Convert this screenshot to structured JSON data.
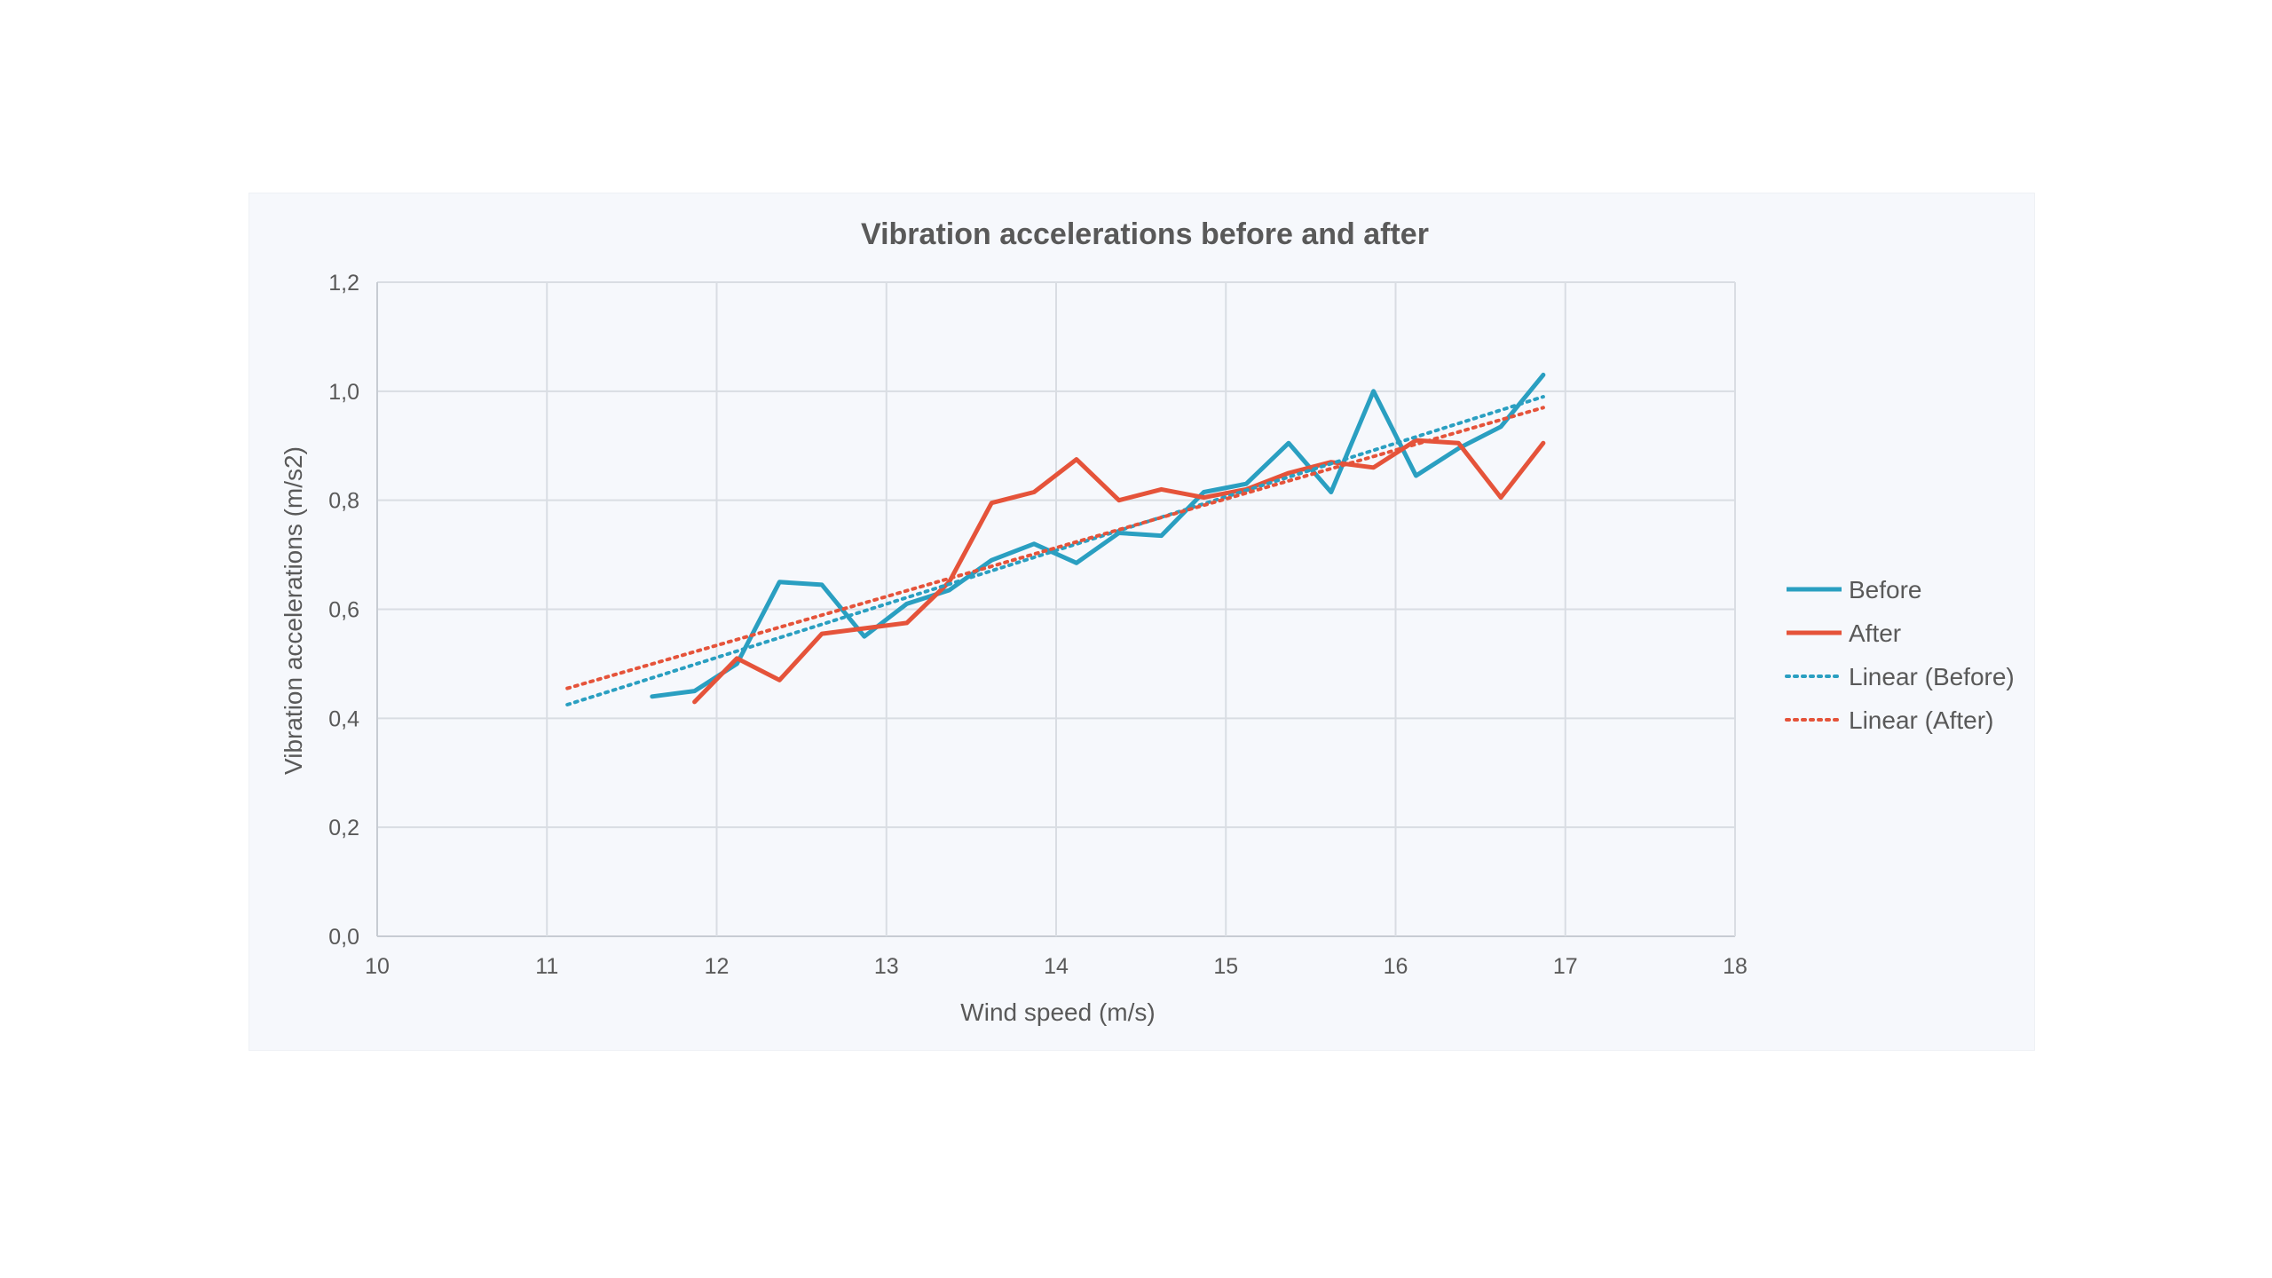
{
  "chart_data": {
    "type": "line",
    "title": "Vibration accelerations before and after",
    "xlabel": "Wind speed (m/s)",
    "ylabel": "Vibration accelerations (m/s2)",
    "xlim": [
      10,
      18
    ],
    "ylim": [
      0,
      1.2
    ],
    "x_ticks": [
      10,
      11,
      12,
      13,
      14,
      15,
      16,
      17,
      18
    ],
    "y_ticks": [
      0,
      0.2,
      0.4,
      0.6,
      0.8,
      1.0,
      1.2
    ],
    "y_tick_labels": [
      "0,0",
      "0,2",
      "0,4",
      "0,6",
      "0,8",
      "1,0",
      "1,2"
    ],
    "grid": true,
    "legend_position": "right",
    "series": [
      {
        "name": "Before",
        "style": "solid",
        "color": "#2a9fc1",
        "points": [
          [
            11.62,
            0.44
          ],
          [
            11.87,
            0.45
          ],
          [
            12.12,
            0.5
          ],
          [
            12.37,
            0.65
          ],
          [
            12.62,
            0.645
          ],
          [
            12.87,
            0.55
          ],
          [
            13.12,
            0.61
          ],
          [
            13.37,
            0.635
          ],
          [
            13.62,
            0.69
          ],
          [
            13.87,
            0.72
          ],
          [
            14.12,
            0.685
          ],
          [
            14.37,
            0.74
          ],
          [
            14.62,
            0.735
          ],
          [
            14.87,
            0.815
          ],
          [
            15.12,
            0.83
          ],
          [
            15.37,
            0.905
          ],
          [
            15.62,
            0.815
          ],
          [
            15.87,
            1.0
          ],
          [
            16.12,
            0.845
          ],
          [
            16.37,
            0.895
          ],
          [
            16.62,
            0.935
          ],
          [
            16.87,
            1.03
          ]
        ]
      },
      {
        "name": "After",
        "style": "solid",
        "color": "#e5533a",
        "points": [
          [
            11.87,
            0.43
          ],
          [
            12.12,
            0.51
          ],
          [
            12.37,
            0.47
          ],
          [
            12.62,
            0.555
          ],
          [
            12.87,
            0.565
          ],
          [
            13.12,
            0.575
          ],
          [
            13.37,
            0.65
          ],
          [
            13.62,
            0.795
          ],
          [
            13.87,
            0.815
          ],
          [
            14.12,
            0.875
          ],
          [
            14.37,
            0.8
          ],
          [
            14.62,
            0.82
          ],
          [
            14.87,
            0.805
          ],
          [
            15.12,
            0.82
          ],
          [
            15.37,
            0.85
          ],
          [
            15.62,
            0.87
          ],
          [
            15.87,
            0.86
          ],
          [
            16.12,
            0.91
          ],
          [
            16.37,
            0.905
          ],
          [
            16.62,
            0.805
          ],
          [
            16.87,
            0.905
          ]
        ]
      },
      {
        "name": "Linear (Before)",
        "style": "dotted",
        "color": "#2a9fc1",
        "points": [
          [
            11.12,
            0.425
          ],
          [
            16.87,
            0.99
          ]
        ]
      },
      {
        "name": "Linear (After)",
        "style": "dotted",
        "color": "#e5533a",
        "points": [
          [
            11.12,
            0.455
          ],
          [
            16.87,
            0.97
          ]
        ]
      }
    ]
  }
}
